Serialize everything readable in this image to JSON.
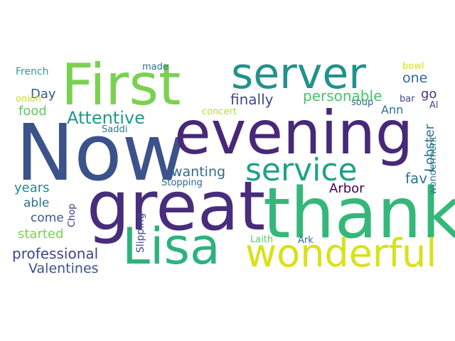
{
  "words": [
    {
      "id": "now",
      "text": "Now",
      "color": "#3b528b"
    },
    {
      "id": "evening",
      "text": "evening",
      "color": "#482878"
    },
    {
      "id": "thank",
      "text": "thank",
      "color": "#35b779"
    },
    {
      "id": "great",
      "text": "great",
      "color": "#472d7b"
    },
    {
      "id": "first",
      "text": "First",
      "color": "#7ad151"
    },
    {
      "id": "server",
      "text": "server",
      "color": "#21918c"
    },
    {
      "id": "lisa",
      "text": "Lisa",
      "color": "#2db27d"
    },
    {
      "id": "service",
      "text": "service",
      "color": "#1fa187"
    },
    {
      "id": "wonderful",
      "text": "wonderful",
      "color": "#d8e219"
    },
    {
      "id": "attentive",
      "text": "Attentive",
      "color": "#1f988b"
    },
    {
      "id": "personable",
      "text": "personable",
      "color": "#4ac16d"
    },
    {
      "id": "finally",
      "text": "finally",
      "color": "#3e4989"
    },
    {
      "id": "wanting",
      "text": "wanting",
      "color": "#31688e"
    },
    {
      "id": "arbor",
      "text": "Arbor",
      "color": "#440154"
    },
    {
      "id": "professional",
      "text": "professional",
      "color": "#414487"
    },
    {
      "id": "valentines",
      "text": "Valentines",
      "color": "#3b528b"
    },
    {
      "id": "lobster",
      "text": "Lobster",
      "color": "#2c728e"
    },
    {
      "id": "fav",
      "text": "fav",
      "color": "#2a788e"
    },
    {
      "id": "food",
      "text": "food",
      "color": "#5ec962"
    },
    {
      "id": "day",
      "text": "Day",
      "color": "#38598c"
    },
    {
      "id": "years",
      "text": "years",
      "color": "#25858e"
    },
    {
      "id": "able",
      "text": "able",
      "color": "#2e6f8e"
    },
    {
      "id": "come",
      "text": "come",
      "color": "#38598c"
    },
    {
      "id": "started",
      "text": "started",
      "color": "#7ad151"
    },
    {
      "id": "ann",
      "text": "Ann",
      "color": "#2c728e"
    },
    {
      "id": "one",
      "text": "one",
      "color": "#31688e"
    },
    {
      "id": "go",
      "text": "go",
      "color": "#46337f"
    },
    {
      "id": "bowl",
      "text": "bowl",
      "color": "#d8e219"
    },
    {
      "id": "bar",
      "text": "bar",
      "color": "#3e4989"
    },
    {
      "id": "soup",
      "text": "soup",
      "color": "#31688e"
    },
    {
      "id": "french",
      "text": "French",
      "color": "#25a18e"
    },
    {
      "id": "made",
      "text": "made",
      "color": "#2d708e"
    },
    {
      "id": "onion",
      "text": "onion",
      "color": "#c8e020"
    },
    {
      "id": "concert",
      "text": "concert",
      "color": "#b5de2b"
    },
    {
      "id": "saddi",
      "text": "Saddi",
      "color": "#2a788e"
    },
    {
      "id": "stopping",
      "text": "Stopping",
      "color": "#33638d"
    },
    {
      "id": "chop",
      "text": "Chop",
      "color": "#46337f"
    },
    {
      "id": "slipping",
      "text": "Slipping",
      "color": "#3e4989"
    },
    {
      "id": "laith",
      "text": "Laith",
      "color": "#5ec962"
    },
    {
      "id": "ark",
      "text": "Ark",
      "color": "#2e6f8e"
    },
    {
      "id": "al",
      "text": "Al",
      "color": "#3e4989"
    },
    {
      "id": "wonderment",
      "text": "wonderment",
      "color": "#2a788e"
    }
  ]
}
